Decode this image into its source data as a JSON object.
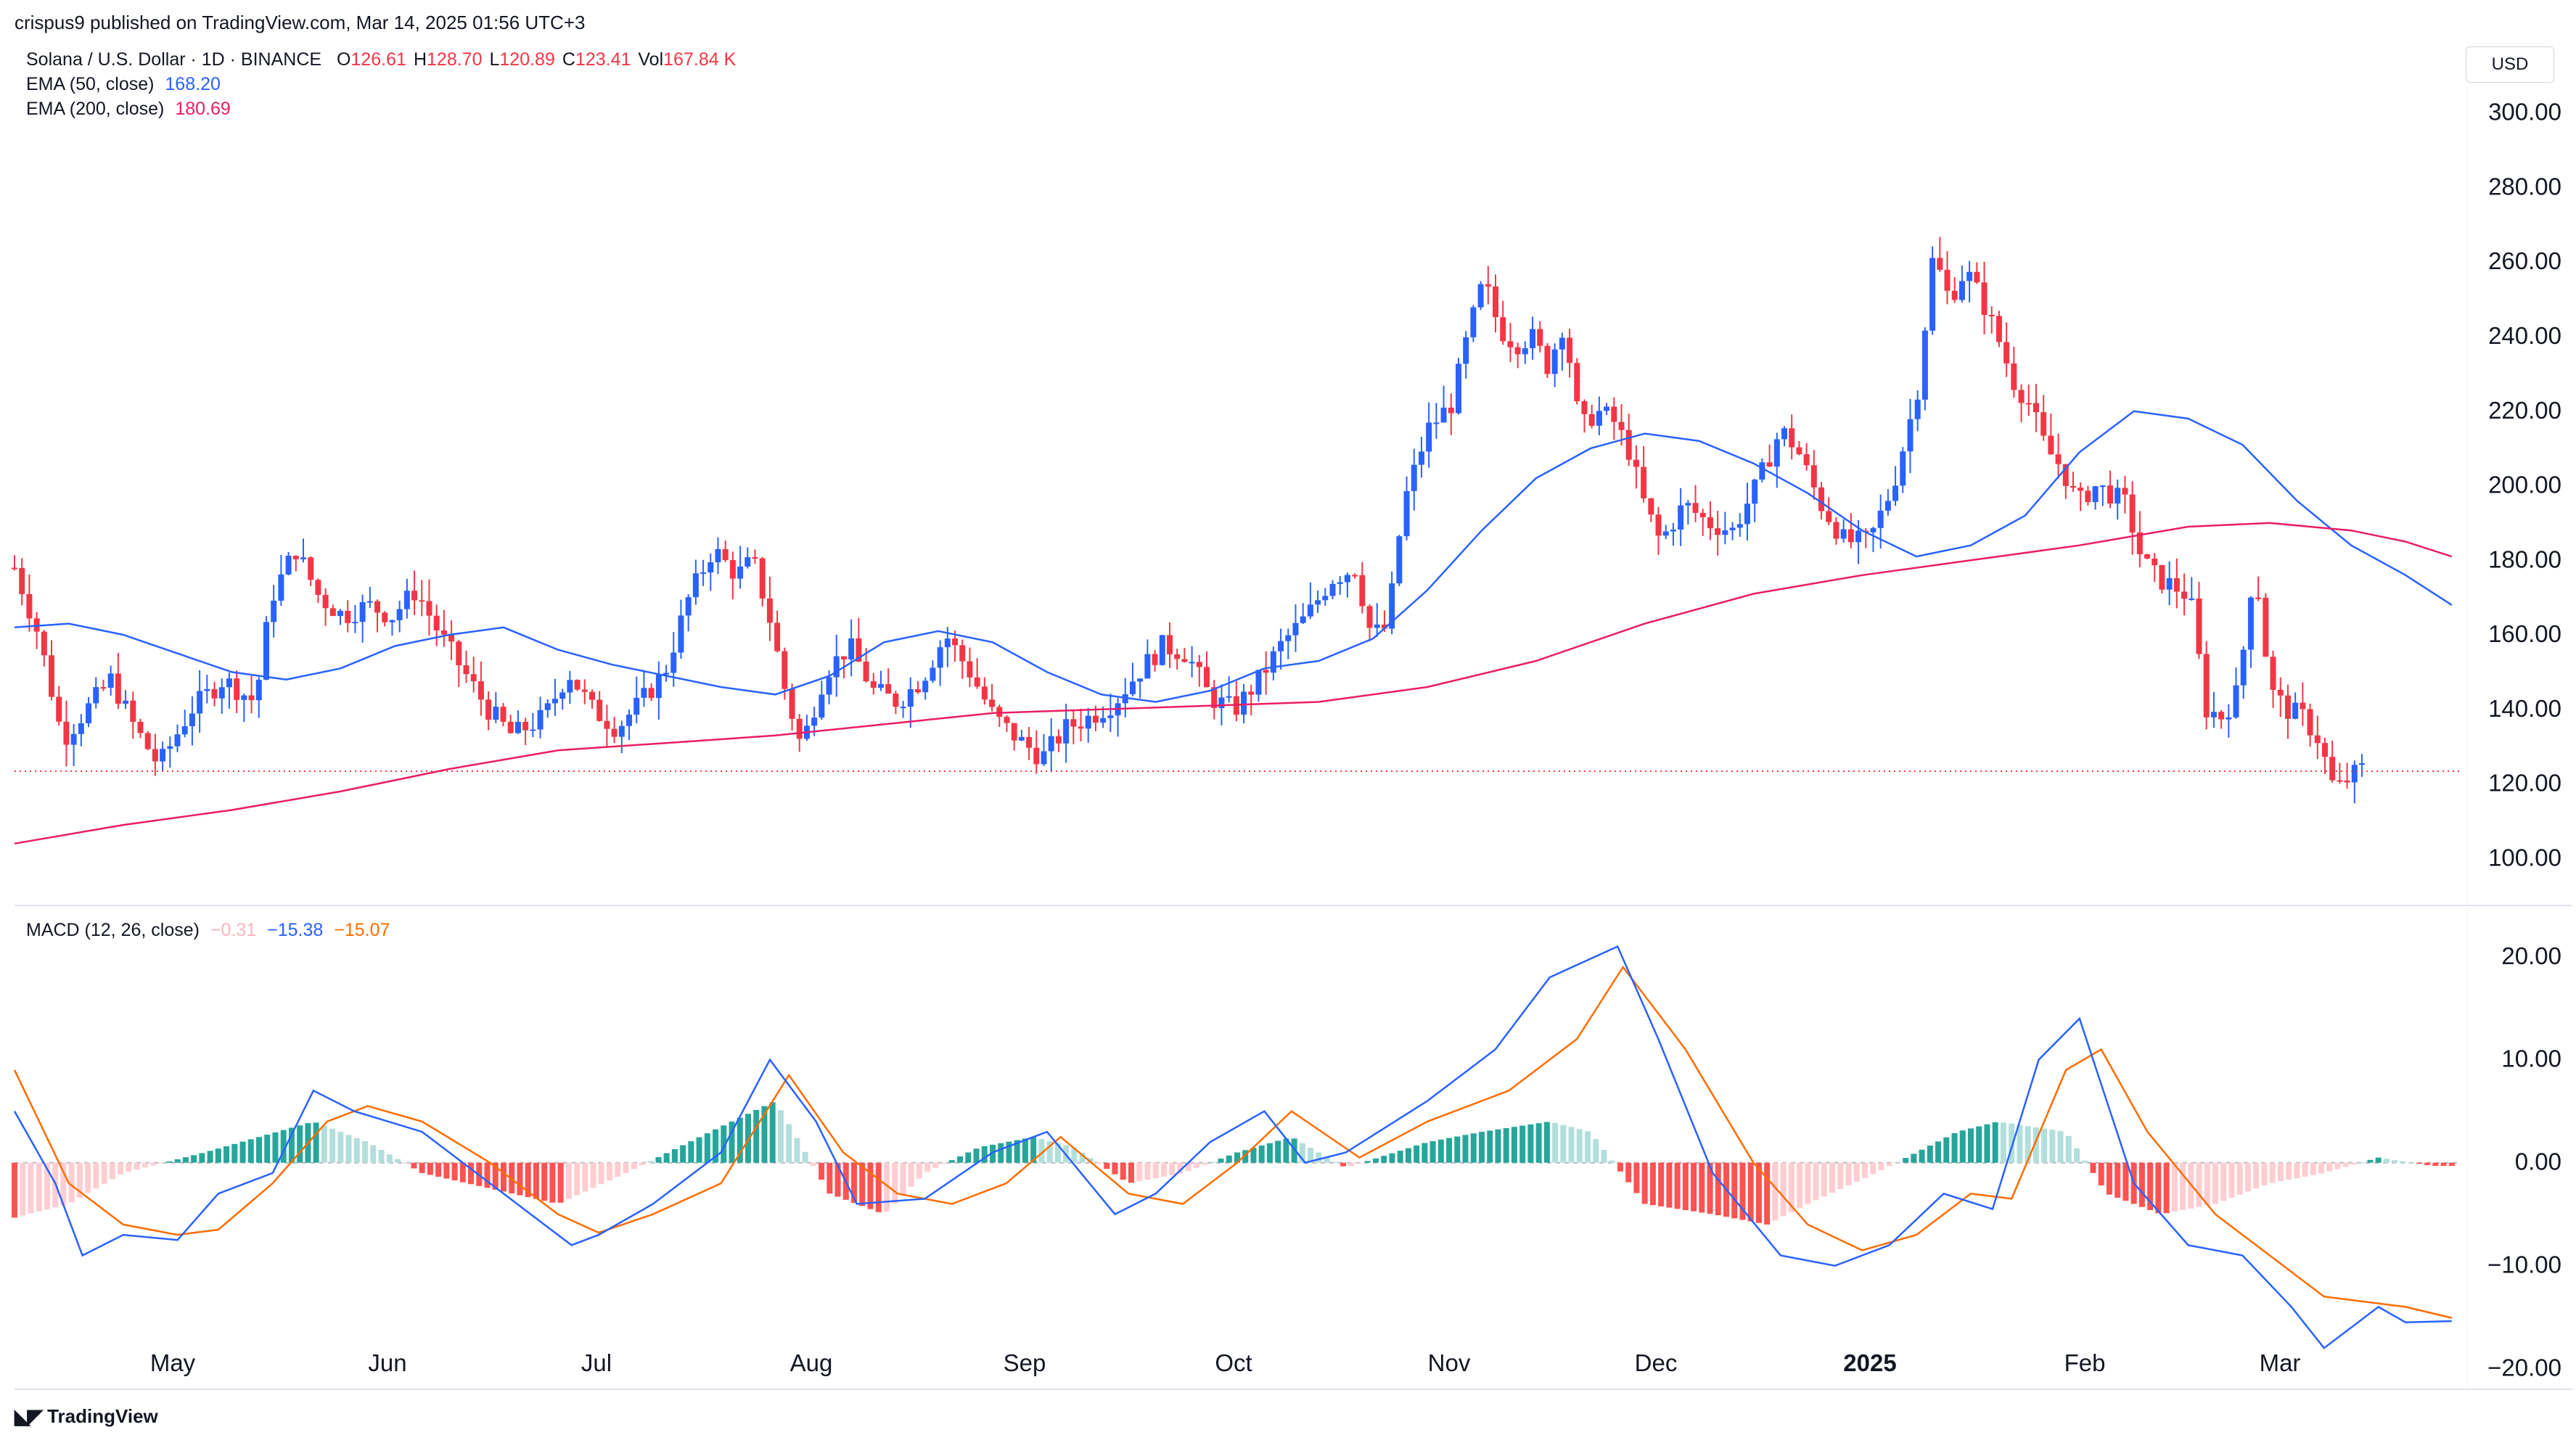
{
  "header": {
    "publisher": "crispus9 published on TradingView.com, Mar 14, 2025 01:56 UTC+3"
  },
  "legend": {
    "symbol": "Solana / U.S. Dollar · 1D · BINANCE",
    "ohlc": [
      {
        "k": "O",
        "v": "126.61"
      },
      {
        "k": "H",
        "v": "128.70"
      },
      {
        "k": "L",
        "v": "120.89"
      },
      {
        "k": "C",
        "v": "123.41"
      },
      {
        "k": "Vol",
        "v": "167.84 K"
      }
    ],
    "ema50_label": "EMA (50, close)",
    "ema50_value": "168.20",
    "ema200_label": "EMA (200, close)",
    "ema200_value": "180.69",
    "macd_label": "MACD (12, 26, close)",
    "macd_hist": "−0.31",
    "macd_line": "−15.38",
    "macd_signal": "−15.07"
  },
  "currency_button": "USD",
  "branding": "TradingView",
  "colors": {
    "up": "#2962ff",
    "down": "#f23645",
    "ema50": "#2962ff",
    "ema200": "#e91e63",
    "macd": "#2962ff",
    "signal": "#ff6d00",
    "hist_pos_strong": "#26a69a",
    "hist_pos_weak": "#b2dfdb",
    "hist_neg_strong": "#ff5252",
    "hist_neg_weak": "#ffcdd2"
  },
  "chart_data": [
    {
      "type": "candlestick",
      "title": "Solana / U.S. Dollar · 1D · BINANCE",
      "ylim": [
        88,
        305
      ],
      "y_ticks": [
        "300.00",
        "280.00",
        "260.00",
        "240.00",
        "220.00",
        "200.00",
        "180.00",
        "160.00",
        "140.00",
        "120.00",
        "100.00"
      ],
      "x_tick_labels": [
        "May",
        "Jun",
        "Jul",
        "Aug",
        "Sep",
        "Oct",
        "Nov",
        "Dec",
        "2025",
        "Feb",
        "Mar"
      ],
      "last_close": 123.41,
      "series": [
        {
          "name": "EMA (50, close)",
          "values": [
            [
              0,
              162
            ],
            [
              20,
              163
            ],
            [
              40,
              160
            ],
            [
              60,
              155
            ],
            [
              80,
              150
            ],
            [
              100,
              148
            ],
            [
              120,
              151
            ],
            [
              140,
              157
            ],
            [
              160,
              160
            ],
            [
              180,
              162
            ],
            [
              200,
              156
            ],
            [
              220,
              152
            ],
            [
              240,
              149
            ],
            [
              260,
              146
            ],
            [
              280,
              144
            ],
            [
              300,
              149
            ],
            [
              320,
              158
            ],
            [
              340,
              161
            ],
            [
              360,
              158
            ],
            [
              380,
              150
            ],
            [
              400,
              144
            ],
            [
              420,
              142
            ],
            [
              440,
              145
            ],
            [
              460,
              151
            ],
            [
              480,
              153
            ],
            [
              500,
              159
            ],
            [
              520,
              172
            ],
            [
              540,
              188
            ],
            [
              560,
              202
            ],
            [
              580,
              210
            ],
            [
              600,
              214
            ],
            [
              620,
              212
            ],
            [
              640,
              206
            ],
            [
              660,
              198
            ],
            [
              680,
              188
            ],
            [
              700,
              181
            ],
            [
              720,
              184
            ],
            [
              740,
              192
            ],
            [
              760,
              209
            ],
            [
              780,
              220
            ],
            [
              800,
              218
            ],
            [
              820,
              211
            ],
            [
              840,
              196
            ],
            [
              860,
              184
            ],
            [
              880,
              176
            ],
            [
              897,
              168
            ]
          ]
        },
        {
          "name": "EMA (200, close)",
          "values": [
            [
              0,
              104
            ],
            [
              40,
              109
            ],
            [
              80,
              113
            ],
            [
              120,
              118
            ],
            [
              160,
              124
            ],
            [
              200,
              129
            ],
            [
              240,
              131
            ],
            [
              280,
              133
            ],
            [
              320,
              136
            ],
            [
              360,
              139
            ],
            [
              400,
              140
            ],
            [
              440,
              141
            ],
            [
              480,
              142
            ],
            [
              520,
              146
            ],
            [
              560,
              153
            ],
            [
              600,
              163
            ],
            [
              640,
              171
            ],
            [
              680,
              176
            ],
            [
              720,
              180
            ],
            [
              760,
              184
            ],
            [
              800,
              189
            ],
            [
              830,
              190
            ],
            [
              860,
              188
            ],
            [
              880,
              185
            ],
            [
              897,
              181
            ]
          ]
        }
      ]
    },
    {
      "type": "line",
      "title": "MACD (12, 26, close)",
      "ylim": [
        -22,
        24
      ],
      "y_ticks": [
        "20.00",
        "10.00",
        "0.00",
        "−10.00",
        "−20.00"
      ],
      "series": [
        {
          "name": "MACD",
          "values": [
            [
              0,
              5
            ],
            [
              15,
              -2
            ],
            [
              25,
              -9
            ],
            [
              40,
              -7
            ],
            [
              60,
              -7.5
            ],
            [
              75,
              -3
            ],
            [
              95,
              -1
            ],
            [
              110,
              7
            ],
            [
              125,
              5
            ],
            [
              150,
              3
            ],
            [
              175,
              -2
            ],
            [
              190,
              -5
            ],
            [
              205,
              -8
            ],
            [
              215,
              -7
            ],
            [
              235,
              -4
            ],
            [
              260,
              1
            ],
            [
              278,
              10
            ],
            [
              295,
              4
            ],
            [
              310,
              -4
            ],
            [
              335,
              -3.5
            ],
            [
              360,
              1
            ],
            [
              380,
              3
            ],
            [
              405,
              -5
            ],
            [
              420,
              -3
            ],
            [
              440,
              2
            ],
            [
              460,
              5
            ],
            [
              475,
              0
            ],
            [
              490,
              1
            ],
            [
              520,
              6
            ],
            [
              545,
              11
            ],
            [
              565,
              18
            ],
            [
              590,
              21
            ],
            [
              605,
              12
            ],
            [
              625,
              -1
            ],
            [
              650,
              -9
            ],
            [
              670,
              -10
            ],
            [
              690,
              -8
            ],
            [
              710,
              -3
            ],
            [
              728,
              -4.5
            ],
            [
              745,
              10
            ],
            [
              760,
              14
            ],
            [
              780,
              -2
            ],
            [
              800,
              -8
            ],
            [
              820,
              -9
            ],
            [
              838,
              -14
            ],
            [
              850,
              -18
            ],
            [
              870,
              -14
            ],
            [
              880,
              -15.5
            ],
            [
              897,
              -15.38
            ]
          ]
        },
        {
          "name": "Signal",
          "values": [
            [
              0,
              9
            ],
            [
              20,
              -2
            ],
            [
              40,
              -6
            ],
            [
              60,
              -7
            ],
            [
              75,
              -6.5
            ],
            [
              95,
              -2
            ],
            [
              115,
              4
            ],
            [
              130,
              5.5
            ],
            [
              150,
              4
            ],
            [
              175,
              0
            ],
            [
              200,
              -5
            ],
            [
              215,
              -6.8
            ],
            [
              235,
              -5
            ],
            [
              260,
              -2
            ],
            [
              285,
              8.5
            ],
            [
              305,
              1
            ],
            [
              325,
              -3
            ],
            [
              345,
              -4
            ],
            [
              365,
              -2
            ],
            [
              385,
              2.5
            ],
            [
              410,
              -3
            ],
            [
              430,
              -4
            ],
            [
              450,
              0
            ],
            [
              470,
              5
            ],
            [
              495,
              0.5
            ],
            [
              520,
              4
            ],
            [
              550,
              7
            ],
            [
              575,
              12
            ],
            [
              592,
              19
            ],
            [
              615,
              11
            ],
            [
              640,
              0
            ],
            [
              660,
              -6
            ],
            [
              680,
              -8.5
            ],
            [
              700,
              -7
            ],
            [
              720,
              -3
            ],
            [
              735,
              -3.5
            ],
            [
              755,
              9
            ],
            [
              768,
              11
            ],
            [
              785,
              3
            ],
            [
              810,
              -5
            ],
            [
              830,
              -9
            ],
            [
              850,
              -13
            ],
            [
              880,
              -14
            ],
            [
              897,
              -15.07
            ]
          ]
        },
        {
          "name": "Histogram",
          "values": [
            [
              5,
              -5
            ],
            [
              20,
              -4
            ],
            [
              40,
              -1
            ],
            [
              70,
              1
            ],
            [
              90,
              2.5
            ],
            [
              110,
              4
            ],
            [
              130,
              2
            ],
            [
              150,
              -1
            ],
            [
              175,
              -2.5
            ],
            [
              200,
              -4
            ],
            [
              225,
              -1
            ],
            [
              260,
              3.5
            ],
            [
              280,
              6
            ],
            [
              300,
              -3
            ],
            [
              320,
              -5
            ],
            [
              335,
              -1
            ],
            [
              355,
              1.5
            ],
            [
              375,
              2.5
            ],
            [
              390,
              1.5
            ],
            [
              410,
              -2
            ],
            [
              430,
              -1
            ],
            [
              450,
              1
            ],
            [
              470,
              2.5
            ],
            [
              490,
              -0.5
            ],
            [
              520,
              2
            ],
            [
              540,
              3
            ],
            [
              565,
              4
            ],
            [
              580,
              3
            ],
            [
              600,
              -4
            ],
            [
              625,
              -5
            ],
            [
              645,
              -6
            ],
            [
              660,
              -4
            ],
            [
              685,
              -1
            ],
            [
              700,
              1
            ],
            [
              715,
              3
            ],
            [
              730,
              4
            ],
            [
              755,
              3
            ],
            [
              770,
              -3
            ],
            [
              790,
              -5
            ],
            [
              810,
              -4
            ],
            [
              830,
              -2
            ],
            [
              850,
              -1
            ],
            [
              870,
              0.5
            ],
            [
              890,
              -0.31
            ]
          ]
        }
      ]
    }
  ]
}
